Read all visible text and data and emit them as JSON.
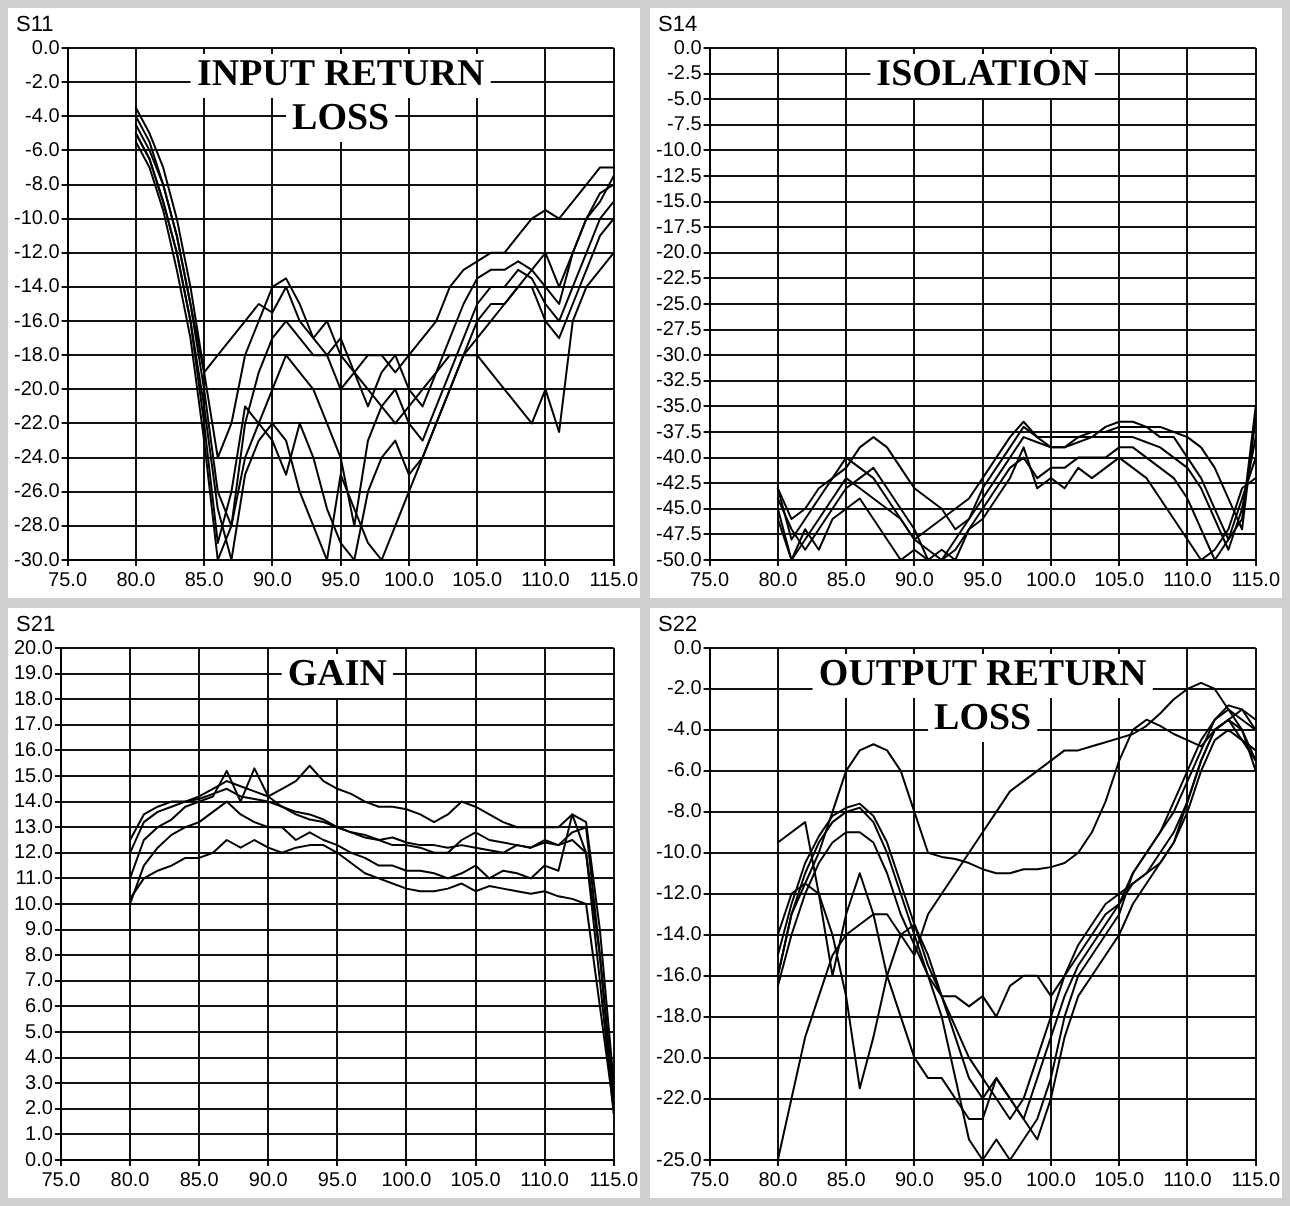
{
  "chart_data": [
    {
      "type": "line",
      "title": "INPUT RETURN LOSS",
      "ylabel": "S11",
      "grid": true,
      "marker": "none",
      "line_style": "solid",
      "x": [
        80,
        81,
        82,
        83,
        84,
        85,
        86,
        87,
        88,
        89,
        90,
        91,
        92,
        93,
        94,
        95,
        96,
        97,
        98,
        99,
        100,
        101,
        102,
        103,
        104,
        105,
        106,
        107,
        108,
        109,
        110,
        111,
        112,
        113,
        114,
        115
      ],
      "xlim": [
        75,
        115
      ],
      "xticks": [
        {
          "value": 75,
          "label": "75.0"
        },
        {
          "value": 80,
          "label": "80.0"
        },
        {
          "value": 85,
          "label": "85.0"
        },
        {
          "value": 90,
          "label": "90.0"
        },
        {
          "value": 95,
          "label": "95.0"
        },
        {
          "value": 100,
          "label": "100.0"
        },
        {
          "value": 105,
          "label": "105.0"
        },
        {
          "value": 110,
          "label": "110.0"
        },
        {
          "value": 115,
          "label": "115.0"
        }
      ],
      "ylim": [
        -30,
        0
      ],
      "yticks": [
        {
          "value": 0,
          "label": "0.0"
        },
        {
          "value": -2,
          "label": "-2.0"
        },
        {
          "value": -4,
          "label": "-4.0"
        },
        {
          "value": -6,
          "label": "-6.0"
        },
        {
          "value": -8,
          "label": "-8.0"
        },
        {
          "value": -10,
          "label": "-10.0"
        },
        {
          "value": -12,
          "label": "-12.0"
        },
        {
          "value": -14,
          "label": "-14.0"
        },
        {
          "value": -16,
          "label": "-16.0"
        },
        {
          "value": -18,
          "label": "-18.0"
        },
        {
          "value": -20,
          "label": "-20.0"
        },
        {
          "value": -22,
          "label": "-22.0"
        },
        {
          "value": -24,
          "label": "-24.0"
        },
        {
          "value": -26,
          "label": "-26.0"
        },
        {
          "value": -28,
          "label": "-28.0"
        },
        {
          "value": -30,
          "label": "-30.0"
        }
      ],
      "series": [
        {
          "color": "#000000",
          "values": [
            -3.5,
            -5,
            -7,
            -10,
            -14,
            -19,
            -24,
            -22,
            -18,
            -16,
            -14,
            -13.5,
            -15,
            -17,
            -16,
            -18,
            -19,
            -18,
            -18,
            -19,
            -18,
            -17,
            -16,
            -14,
            -13,
            -12.5,
            -12,
            -12,
            -11,
            -10,
            -9.5,
            -10,
            -9,
            -8,
            -7,
            -7
          ]
        },
        {
          "color": "#000000",
          "values": [
            -4.5,
            -6,
            -8,
            -11,
            -15,
            -20,
            -26,
            -28,
            -22,
            -19,
            -17,
            -16,
            -17,
            -18,
            -18,
            -17,
            -19,
            -21,
            -19,
            -18,
            -20,
            -21,
            -19,
            -17,
            -15,
            -13.5,
            -13,
            -13,
            -12.5,
            -13,
            -14,
            -15,
            -12,
            -10,
            -8.5,
            -8
          ]
        },
        {
          "color": "#000000",
          "values": [
            -5,
            -6.5,
            -9,
            -12,
            -16,
            -22,
            -29,
            -26,
            -21,
            -22,
            -20,
            -18,
            -19,
            -20,
            -22,
            -24,
            -28,
            -23,
            -21,
            -20,
            -22,
            -23,
            -21,
            -19,
            -17,
            -15,
            -14,
            -14,
            -13,
            -13.5,
            -15,
            -16,
            -14,
            -12,
            -10,
            -9
          ]
        },
        {
          "color": "#000000",
          "values": [
            -5.5,
            -7,
            -9.5,
            -13,
            -17,
            -23,
            -30,
            -28,
            -24,
            -22,
            -23,
            -25,
            -22,
            -24,
            -27,
            -29,
            -30,
            -26,
            -24,
            -23,
            -25,
            -24,
            -22,
            -20,
            -18,
            -16,
            -15,
            -15,
            -14,
            -14,
            -16,
            -17,
            -15,
            -13,
            -11,
            -10
          ]
        },
        {
          "color": "#000000",
          "values": [
            -4,
            -5.5,
            -8,
            -11,
            -15,
            -19,
            -18,
            -17,
            -16,
            -15,
            -15.5,
            -14,
            -16,
            -17,
            -18,
            -20,
            -19,
            -20,
            -21,
            -22,
            -21,
            -20,
            -19,
            -18,
            -18,
            -18,
            -19,
            -20,
            -21,
            -22,
            -20,
            -22.5,
            -16,
            -14,
            -13,
            -12
          ]
        },
        {
          "color": "#000000",
          "values": [
            -5,
            -6.5,
            -9,
            -12,
            -16,
            -21,
            -27,
            -30,
            -25,
            -23,
            -22,
            -23,
            -26,
            -28,
            -30,
            -25,
            -27,
            -29,
            -30,
            -28,
            -26,
            -24,
            -22,
            -20,
            -18,
            -17,
            -16,
            -15,
            -14,
            -13,
            -12,
            -14,
            -12,
            -10,
            -9,
            -7.5
          ]
        }
      ]
    },
    {
      "type": "line",
      "title": "ISOLATION",
      "ylabel": "S14",
      "grid": true,
      "marker": "none",
      "line_style": "solid",
      "x": [
        80,
        81,
        82,
        83,
        84,
        85,
        86,
        87,
        88,
        89,
        90,
        91,
        92,
        93,
        94,
        95,
        96,
        97,
        98,
        99,
        100,
        101,
        102,
        103,
        104,
        105,
        106,
        107,
        108,
        109,
        110,
        111,
        112,
        113,
        114,
        115
      ],
      "xlim": [
        75,
        115
      ],
      "xticks": [
        {
          "value": 75,
          "label": "75.0"
        },
        {
          "value": 80,
          "label": "80.0"
        },
        {
          "value": 85,
          "label": "85.0"
        },
        {
          "value": 90,
          "label": "90.0"
        },
        {
          "value": 95,
          "label": "95.0"
        },
        {
          "value": 100,
          "label": "100.0"
        },
        {
          "value": 105,
          "label": "105.0"
        },
        {
          "value": 110,
          "label": "110.0"
        },
        {
          "value": 115,
          "label": "115.0"
        }
      ],
      "ylim": [
        -50,
        0
      ],
      "yticks": [
        {
          "value": 0,
          "label": "0.0"
        },
        {
          "value": -2.5,
          "label": "-2.5"
        },
        {
          "value": -5,
          "label": "-5.0"
        },
        {
          "value": -7.5,
          "label": "-7.5"
        },
        {
          "value": -10,
          "label": "-10.0"
        },
        {
          "value": -12.5,
          "label": "-12.5"
        },
        {
          "value": -15,
          "label": "-15.0"
        },
        {
          "value": -17.5,
          "label": "-17.5"
        },
        {
          "value": -20,
          "label": "-20.0"
        },
        {
          "value": -22.5,
          "label": "-22.5"
        },
        {
          "value": -25,
          "label": "-25.0"
        },
        {
          "value": -27.5,
          "label": "-27.5"
        },
        {
          "value": -30,
          "label": "-30.0"
        },
        {
          "value": -32.5,
          "label": "-32.5"
        },
        {
          "value": -35,
          "label": "-35.0"
        },
        {
          "value": -37.5,
          "label": "-37.5"
        },
        {
          "value": -40,
          "label": "-40.0"
        },
        {
          "value": -42.5,
          "label": "-42.5"
        },
        {
          "value": -45,
          "label": "-45.0"
        },
        {
          "value": -47.5,
          "label": "-47.5"
        },
        {
          "value": -50,
          "label": "-50.0"
        }
      ],
      "series": [
        {
          "color": "#000000",
          "values": [
            -43,
            -48,
            -46,
            -44,
            -42,
            -41,
            -39,
            -38,
            -39,
            -41,
            -43,
            -44,
            -45,
            -47,
            -46,
            -43,
            -41,
            -39,
            -37,
            -38,
            -38,
            -38,
            -38,
            -37.5,
            -37.5,
            -37,
            -37,
            -37,
            -37,
            -37.5,
            -38,
            -39,
            -41,
            -44,
            -47,
            -36
          ]
        },
        {
          "color": "#000000",
          "values": [
            -45,
            -50,
            -48,
            -46,
            -44,
            -42,
            -43,
            -44,
            -45,
            -46,
            -48,
            -49,
            -50,
            -48,
            -46,
            -44,
            -42,
            -40,
            -38,
            -38.5,
            -39,
            -39,
            -38.5,
            -38,
            -38,
            -38,
            -38,
            -38.5,
            -39,
            -40,
            -41,
            -43,
            -46,
            -49,
            -45,
            -38
          ]
        },
        {
          "color": "#000000",
          "values": [
            -44,
            -47,
            -49,
            -47,
            -45,
            -43,
            -42,
            -41,
            -43,
            -45,
            -47,
            -50,
            -49,
            -50,
            -47,
            -45,
            -43,
            -41,
            -40,
            -42,
            -41,
            -41,
            -40,
            -40,
            -40,
            -39,
            -39,
            -40,
            -41,
            -42,
            -44,
            -47,
            -50,
            -48,
            -44,
            -40
          ]
        },
        {
          "color": "#000000",
          "values": [
            -46,
            -50,
            -47,
            -49,
            -46,
            -45,
            -44,
            -46,
            -48,
            -50,
            -49,
            -50,
            -50,
            -49,
            -47,
            -46,
            -44,
            -42,
            -39,
            -43,
            -42,
            -43,
            -41,
            -42,
            -41,
            -40,
            -41,
            -42,
            -44,
            -46,
            -48,
            -50,
            -49,
            -47,
            -43,
            -42
          ]
        },
        {
          "color": "#000000",
          "values": [
            -43,
            -46,
            -45,
            -43,
            -42,
            -40,
            -41,
            -42,
            -44,
            -46,
            -48,
            -47,
            -46,
            -45,
            -44,
            -42,
            -40,
            -38,
            -36.5,
            -38,
            -39,
            -39,
            -38,
            -38,
            -37,
            -36.5,
            -36.5,
            -37,
            -38,
            -38,
            -40,
            -42,
            -45,
            -48,
            -46,
            -35
          ]
        }
      ]
    },
    {
      "type": "line",
      "title": "GAIN",
      "ylabel": "S21",
      "grid": true,
      "marker": "none",
      "line_style": "solid",
      "x": [
        80,
        81,
        82,
        83,
        84,
        85,
        86,
        87,
        88,
        89,
        90,
        91,
        92,
        93,
        94,
        95,
        96,
        97,
        98,
        99,
        100,
        101,
        102,
        103,
        104,
        105,
        106,
        107,
        108,
        109,
        110,
        111,
        112,
        113,
        114,
        115
      ],
      "xlim": [
        75,
        115
      ],
      "xticks": [
        {
          "value": 75,
          "label": "75.0"
        },
        {
          "value": 80,
          "label": "80.0"
        },
        {
          "value": 85,
          "label": "85.0"
        },
        {
          "value": 90,
          "label": "90.0"
        },
        {
          "value": 95,
          "label": "95.0"
        },
        {
          "value": 100,
          "label": "100.0"
        },
        {
          "value": 105,
          "label": "105.0"
        },
        {
          "value": 110,
          "label": "110.0"
        },
        {
          "value": 115,
          "label": "115.0"
        }
      ],
      "ylim": [
        0,
        20
      ],
      "yticks": [
        {
          "value": 0,
          "label": "0.0"
        },
        {
          "value": 1,
          "label": "1.0"
        },
        {
          "value": 2,
          "label": "2.0"
        },
        {
          "value": 3,
          "label": "3.0"
        },
        {
          "value": 4,
          "label": "4.0"
        },
        {
          "value": 5,
          "label": "5.0"
        },
        {
          "value": 6,
          "label": "6.0"
        },
        {
          "value": 7,
          "label": "7.0"
        },
        {
          "value": 8,
          "label": "8.0"
        },
        {
          "value": 9,
          "label": "9.0"
        },
        {
          "value": 10,
          "label": "10.0"
        },
        {
          "value": 11,
          "label": "11.0"
        },
        {
          "value": 12,
          "label": "12.0"
        },
        {
          "value": 13,
          "label": "13.0"
        },
        {
          "value": 14,
          "label": "14.0"
        },
        {
          "value": 15,
          "label": "15.0"
        },
        {
          "value": 16,
          "label": "16.0"
        },
        {
          "value": 17,
          "label": "17.0"
        },
        {
          "value": 18,
          "label": "18.0"
        },
        {
          "value": 19,
          "label": "19.0"
        },
        {
          "value": 20,
          "label": "20.0"
        }
      ],
      "series": [
        {
          "color": "#000000",
          "values": [
            12.5,
            13.5,
            13.8,
            14,
            14,
            14.2,
            14.5,
            14.8,
            14.6,
            14.4,
            14.2,
            14.5,
            14.8,
            15.4,
            14.8,
            14.5,
            14.3,
            14,
            13.8,
            13.8,
            13.7,
            13.5,
            13.2,
            13.5,
            14,
            13.8,
            13.5,
            13.2,
            13,
            13,
            13,
            13,
            13.5,
            13.2,
            9,
            3
          ]
        },
        {
          "color": "#000000",
          "values": [
            11,
            12.5,
            13,
            13.3,
            13.8,
            14,
            14.2,
            15.2,
            14,
            15.3,
            14.2,
            13.8,
            13.5,
            13.3,
            13.2,
            13,
            12.8,
            12.6,
            12.5,
            12.3,
            12.3,
            12.2,
            12,
            12,
            12.5,
            12.8,
            12.5,
            12.4,
            12.3,
            12.2,
            12.5,
            12.3,
            12.8,
            13,
            8,
            2
          ]
        },
        {
          "color": "#000000",
          "values": [
            10,
            11.5,
            12.2,
            12.7,
            13,
            13.2,
            13.6,
            14,
            13.5,
            13.2,
            13,
            13,
            12.5,
            12.8,
            12.5,
            12.3,
            12,
            11.8,
            11.5,
            11.5,
            11.3,
            11.3,
            11.2,
            11,
            11.2,
            11.5,
            11,
            11.3,
            11.2,
            11,
            11.5,
            11.3,
            13.5,
            12,
            7,
            1.8
          ]
        },
        {
          "color": "#000000",
          "values": [
            10.2,
            11,
            11.3,
            11.5,
            11.8,
            11.8,
            12,
            12.5,
            12.2,
            12.5,
            12.2,
            12,
            12.2,
            12.3,
            12.3,
            12,
            11.6,
            11.2,
            11,
            10.8,
            10.6,
            10.5,
            10.5,
            10.6,
            10.8,
            10.5,
            10.7,
            10.6,
            10.5,
            10.4,
            10.5,
            10.3,
            10.2,
            10,
            6,
            2
          ]
        },
        {
          "color": "#000000",
          "values": [
            12,
            13.2,
            13.6,
            13.8,
            14,
            14.1,
            14.3,
            14.5,
            14.2,
            14.1,
            14,
            13.8,
            13.6,
            13.5,
            13.3,
            13,
            12.8,
            12.7,
            12.5,
            12.6,
            12.4,
            12.3,
            12.3,
            12.2,
            12.3,
            12.2,
            12.1,
            12,
            12.3,
            12.2,
            12.4,
            12.3,
            12.5,
            12,
            8,
            2.5
          ]
        }
      ]
    },
    {
      "type": "line",
      "title": "OUTPUT RETURN LOSS",
      "ylabel": "S22",
      "grid": true,
      "marker": "none",
      "line_style": "solid",
      "x": [
        80,
        81,
        82,
        83,
        84,
        85,
        86,
        87,
        88,
        89,
        90,
        91,
        92,
        93,
        94,
        95,
        96,
        97,
        98,
        99,
        100,
        101,
        102,
        103,
        104,
        105,
        106,
        107,
        108,
        109,
        110,
        111,
        112,
        113,
        114,
        115
      ],
      "xlim": [
        75,
        115
      ],
      "xticks": [
        {
          "value": 75,
          "label": "75.0"
        },
        {
          "value": 80,
          "label": "80.0"
        },
        {
          "value": 85,
          "label": "85.0"
        },
        {
          "value": 90,
          "label": "90.0"
        },
        {
          "value": 95,
          "label": "95.0"
        },
        {
          "value": 100,
          "label": "100.0"
        },
        {
          "value": 105,
          "label": "105.0"
        },
        {
          "value": 110,
          "label": "110.0"
        },
        {
          "value": 115,
          "label": "115.0"
        }
      ],
      "ylim": [
        -25,
        0
      ],
      "yticks": [
        {
          "value": 0,
          "label": "0.0"
        },
        {
          "value": -2,
          "label": "-2.0"
        },
        {
          "value": -4,
          "label": "-4.0"
        },
        {
          "value": -6,
          "label": "-6.0"
        },
        {
          "value": -8,
          "label": "-8.0"
        },
        {
          "value": -10,
          "label": "-10.0"
        },
        {
          "value": -12,
          "label": "-12.0"
        },
        {
          "value": -14,
          "label": "-14.0"
        },
        {
          "value": -16,
          "label": "-16.0"
        },
        {
          "value": -18,
          "label": "-18.0"
        },
        {
          "value": -20,
          "label": "-20.0"
        },
        {
          "value": -22,
          "label": "-22.0"
        },
        {
          "value": -25,
          "label": "-25.0"
        }
      ],
      "series": [
        {
          "color": "#000000",
          "values": [
            -16,
            -13,
            -11,
            -9.5,
            -8.5,
            -8,
            -7.8,
            -8.5,
            -10,
            -12,
            -14,
            -16,
            -18,
            -21,
            -24,
            -25,
            -24,
            -25,
            -24,
            -23,
            -21,
            -18,
            -16,
            -15,
            -14,
            -13,
            -11,
            -10,
            -9,
            -7.5,
            -6,
            -4.5,
            -3.5,
            -3,
            -3.5,
            -4
          ]
        },
        {
          "color": "#000000",
          "values": [
            -15,
            -12.5,
            -10.5,
            -9.2,
            -8.2,
            -7.8,
            -7.6,
            -8.2,
            -9.5,
            -11.5,
            -13.5,
            -15.5,
            -17,
            -19,
            -21,
            -22,
            -21,
            -22,
            -23,
            -21,
            -19,
            -17,
            -15.5,
            -14.5,
            -13.5,
            -12.5,
            -11,
            -10,
            -9,
            -8,
            -6.5,
            -5,
            -3.5,
            -2.8,
            -3,
            -3.5
          ]
        },
        {
          "color": "#000000",
          "values": [
            -16.5,
            -14,
            -12,
            -10.5,
            -9.5,
            -9,
            -9,
            -9.5,
            -11,
            -13,
            -14.5,
            -16,
            -17,
            -17,
            -17.5,
            -17,
            -18,
            -16.5,
            -16,
            -16,
            -17,
            -16,
            -15,
            -14,
            -13,
            -12.5,
            -11.5,
            -11,
            -10,
            -9,
            -7.5,
            -5.5,
            -4,
            -3.5,
            -4.5,
            -5
          ]
        },
        {
          "color": "#000000",
          "values": [
            -9.5,
            -9,
            -8.5,
            -12,
            -16,
            -13,
            -11,
            -13,
            -16,
            -18,
            -20,
            -21,
            -21,
            -22,
            -23,
            -23,
            -21,
            -22,
            -23,
            -24,
            -22,
            -19,
            -17,
            -16,
            -15,
            -14,
            -12.5,
            -11.5,
            -10.5,
            -9.5,
            -7.5,
            -5.5,
            -4,
            -3.5,
            -4,
            -5.5
          ]
        },
        {
          "color": "#000000",
          "values": [
            -16,
            -13,
            -11.5,
            -10,
            -8,
            -6,
            -5,
            -4.7,
            -5,
            -6,
            -8,
            -10,
            -10.2,
            -10.3,
            -10.5,
            -10.8,
            -11,
            -11,
            -10.8,
            -10.8,
            -10.7,
            -10.5,
            -10,
            -9,
            -7.5,
            -5.5,
            -4,
            -3.5,
            -3.8,
            -4.2,
            -4.5,
            -4.8,
            -4,
            -3.5,
            -3,
            -4
          ]
        },
        {
          "color": "#000000",
          "values": [
            -25,
            -22,
            -19,
            -17,
            -15,
            -14,
            -13.5,
            -13,
            -13,
            -14,
            -15,
            -13,
            -12,
            -11,
            -10,
            -9,
            -8,
            -7,
            -6.5,
            -6,
            -5.5,
            -5,
            -5,
            -4.8,
            -4.6,
            -4.4,
            -4.2,
            -3.8,
            -3.2,
            -2.5,
            -2,
            -1.7,
            -2,
            -3,
            -4,
            -6
          ]
        },
        {
          "color": "#000000",
          "values": [
            -14,
            -12,
            -11.5,
            -12,
            -14,
            -17,
            -21.5,
            -19,
            -16,
            -14,
            -13.5,
            -15,
            -17,
            -18.5,
            -20,
            -21,
            -22,
            -23,
            -22,
            -20,
            -18,
            -16,
            -14.5,
            -13.5,
            -12.5,
            -12,
            -11.5,
            -11,
            -10.5,
            -9.5,
            -8,
            -6,
            -4.5,
            -4,
            -4.5,
            -5.5
          ]
        }
      ]
    }
  ]
}
